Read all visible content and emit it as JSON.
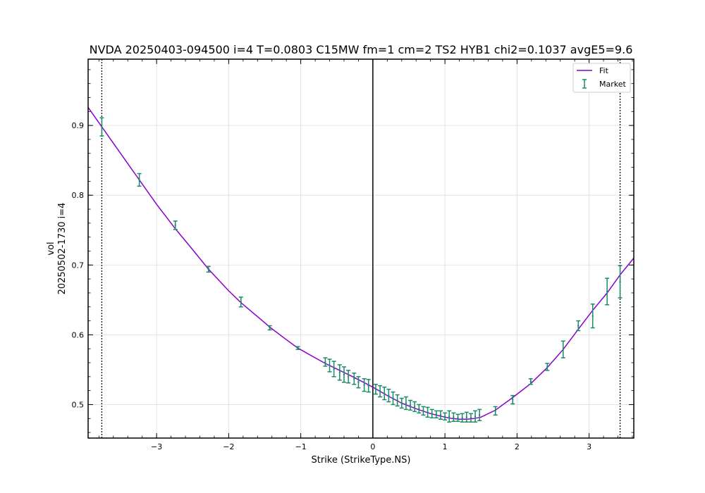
{
  "chart_data": {
    "type": "line",
    "title": "NVDA 20250403-094500 i=4 T=0.0803 C15MW fm=1 cm=2 TS2 HYB1 chi2=0.1037 avgE5=9.6",
    "xlabel": "Strike (StrikeType.NS)",
    "ylabel_line1": "vol",
    "ylabel_line2": "20250502-1730 i=4",
    "xlim": [
      -3.95,
      3.62
    ],
    "ylim": [
      0.452,
      0.995
    ],
    "xticks": [
      -3,
      -2,
      -1,
      0,
      1,
      2,
      3
    ],
    "xtick_labels": [
      "−3",
      "−2",
      "−1",
      "0",
      "1",
      "2",
      "3"
    ],
    "yticks": [
      0.5,
      0.6,
      0.7,
      0.8,
      0.9
    ],
    "ytick_labels": [
      "0.5",
      "0.6",
      "0.7",
      "0.8",
      "0.9"
    ],
    "grid": true,
    "legend_position": "top-right",
    "vertical_lines": {
      "solid": [
        0
      ],
      "dotted": [
        -3.76,
        3.43
      ]
    },
    "colors": {
      "fit": "#8800cc",
      "market": "#1a8a6a",
      "grid": "#dddddd",
      "axes": "#000000"
    },
    "series": [
      {
        "name": "Fit",
        "kind": "line",
        "x": [
          -3.95,
          -3.76,
          -3.5,
          -3.24,
          -3.0,
          -2.74,
          -2.5,
          -2.28,
          -2.0,
          -1.83,
          -1.6,
          -1.43,
          -1.2,
          -1.04,
          -0.8,
          -0.66,
          -0.5,
          -0.3,
          -0.15,
          0.0,
          0.2,
          0.4,
          0.6,
          0.8,
          1.0,
          1.1,
          1.2,
          1.3,
          1.4,
          1.5,
          1.7,
          1.94,
          2.19,
          2.42,
          2.64,
          2.85,
          3.05,
          3.25,
          3.43,
          3.62
        ],
        "y": [
          0.926,
          0.898,
          0.86,
          0.822,
          0.787,
          0.752,
          0.722,
          0.694,
          0.663,
          0.646,
          0.626,
          0.611,
          0.593,
          0.581,
          0.567,
          0.559,
          0.551,
          0.541,
          0.533,
          0.525,
          0.513,
          0.502,
          0.494,
          0.487,
          0.482,
          0.48,
          0.479,
          0.479,
          0.48,
          0.482,
          0.492,
          0.51,
          0.53,
          0.553,
          0.579,
          0.608,
          0.635,
          0.66,
          0.686,
          0.71
        ]
      },
      {
        "name": "Market",
        "kind": "errorbar",
        "points": [
          {
            "x": -3.76,
            "y": 0.898,
            "err": 0.013
          },
          {
            "x": -3.24,
            "y": 0.822,
            "err": 0.009
          },
          {
            "x": -2.74,
            "y": 0.757,
            "err": 0.006
          },
          {
            "x": -2.28,
            "y": 0.694,
            "err": 0.004
          },
          {
            "x": -1.83,
            "y": 0.647,
            "err": 0.007
          },
          {
            "x": -1.43,
            "y": 0.61,
            "err": 0.003
          },
          {
            "x": -1.04,
            "y": 0.581,
            "err": 0.002
          },
          {
            "x": -0.66,
            "y": 0.561,
            "err": 0.006
          },
          {
            "x": -0.6,
            "y": 0.556,
            "err": 0.009
          },
          {
            "x": -0.54,
            "y": 0.551,
            "err": 0.011
          },
          {
            "x": -0.46,
            "y": 0.546,
            "err": 0.011
          },
          {
            "x": -0.4,
            "y": 0.543,
            "err": 0.011
          },
          {
            "x": -0.34,
            "y": 0.54,
            "err": 0.009
          },
          {
            "x": -0.26,
            "y": 0.537,
            "err": 0.008
          },
          {
            "x": -0.2,
            "y": 0.532,
            "err": 0.008
          },
          {
            "x": -0.12,
            "y": 0.528,
            "err": 0.009
          },
          {
            "x": -0.06,
            "y": 0.527,
            "err": 0.009
          },
          {
            "x": 0.04,
            "y": 0.522,
            "err": 0.007
          },
          {
            "x": 0.1,
            "y": 0.519,
            "err": 0.008
          },
          {
            "x": 0.16,
            "y": 0.516,
            "err": 0.009
          },
          {
            "x": 0.22,
            "y": 0.513,
            "err": 0.009
          },
          {
            "x": 0.28,
            "y": 0.509,
            "err": 0.009
          },
          {
            "x": 0.34,
            "y": 0.506,
            "err": 0.008
          },
          {
            "x": 0.4,
            "y": 0.502,
            "err": 0.007
          },
          {
            "x": 0.46,
            "y": 0.502,
            "err": 0.009
          },
          {
            "x": 0.52,
            "y": 0.499,
            "err": 0.007
          },
          {
            "x": 0.58,
            "y": 0.497,
            "err": 0.007
          },
          {
            "x": 0.64,
            "y": 0.494,
            "err": 0.006
          },
          {
            "x": 0.7,
            "y": 0.491,
            "err": 0.006
          },
          {
            "x": 0.76,
            "y": 0.489,
            "err": 0.007
          },
          {
            "x": 0.82,
            "y": 0.487,
            "err": 0.006
          },
          {
            "x": 0.88,
            "y": 0.486,
            "err": 0.005
          },
          {
            "x": 0.94,
            "y": 0.485,
            "err": 0.006
          },
          {
            "x": 1.0,
            "y": 0.483,
            "err": 0.005
          },
          {
            "x": 1.06,
            "y": 0.483,
            "err": 0.008
          },
          {
            "x": 1.12,
            "y": 0.482,
            "err": 0.006
          },
          {
            "x": 1.18,
            "y": 0.481,
            "err": 0.005
          },
          {
            "x": 1.24,
            "y": 0.481,
            "err": 0.006
          },
          {
            "x": 1.3,
            "y": 0.482,
            "err": 0.007
          },
          {
            "x": 1.36,
            "y": 0.481,
            "err": 0.006
          },
          {
            "x": 1.42,
            "y": 0.483,
            "err": 0.008
          },
          {
            "x": 1.48,
            "y": 0.485,
            "err": 0.008
          },
          {
            "x": 1.7,
            "y": 0.491,
            "err": 0.006
          },
          {
            "x": 1.94,
            "y": 0.507,
            "err": 0.006
          },
          {
            "x": 2.19,
            "y": 0.533,
            "err": 0.004
          },
          {
            "x": 2.42,
            "y": 0.554,
            "err": 0.005
          },
          {
            "x": 2.64,
            "y": 0.579,
            "err": 0.012
          },
          {
            "x": 2.85,
            "y": 0.613,
            "err": 0.007
          },
          {
            "x": 3.05,
            "y": 0.627,
            "err": 0.017
          },
          {
            "x": 3.25,
            "y": 0.662,
            "err": 0.019
          },
          {
            "x": 3.43,
            "y": 0.676,
            "err": 0.023
          }
        ]
      }
    ]
  }
}
